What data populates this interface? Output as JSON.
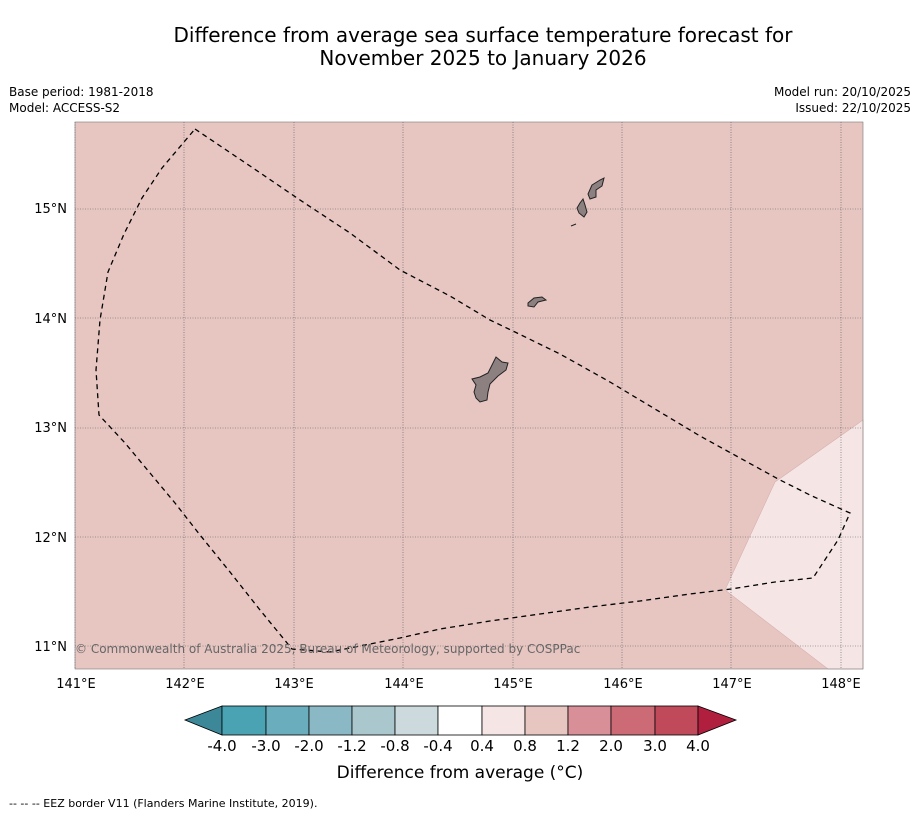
{
  "title": {
    "line1": "Difference from average sea surface temperature forecast for",
    "line2": "November 2025 to January 2026"
  },
  "meta": {
    "base_period": "Base period: 1981-2018",
    "model": "Model: ACCESS-S2",
    "model_run": "Model run: 20/10/2025",
    "issued": "Issued: 22/10/2025"
  },
  "map": {
    "lon_ticks": [
      "141°E",
      "142°E",
      "143°E",
      "144°E",
      "145°E",
      "146°E",
      "147°E",
      "148°E"
    ],
    "lat_ticks": [
      "15°N",
      "14°N",
      "13°N",
      "12°N",
      "11°N"
    ],
    "copyright": "© Commonwealth of Australia 2025, Bureau of Meteorology, supported by COSPPac",
    "zone_colors": {
      "main": "#e7c6c2",
      "southeast": "#f5e6e5",
      "land": "#8c8080"
    },
    "anomaly_zones": [
      {
        "range": "0.8 to 1.2",
        "color": "#e7c6c2",
        "area": "most of region"
      },
      {
        "range": "0.4 to 0.8",
        "color": "#f5e6e5",
        "area": "south-east corner"
      }
    ]
  },
  "colorbar": {
    "title": "Difference from average (°C)",
    "tick_labels": [
      "-4.0",
      "-3.0",
      "-2.0",
      "-1.2",
      "-0.8",
      "-0.4",
      "0.4",
      "0.8",
      "1.2",
      "2.0",
      "3.0",
      "4.0"
    ],
    "colors": [
      "#4aa3b3",
      "#6aaebe",
      "#8ab8c4",
      "#a9c7cc",
      "#cddadd",
      "#ffffff",
      "#f5e6e5",
      "#e7c6c2",
      "#d88f98",
      "#cc6a75",
      "#c04a5a"
    ],
    "under_color": "#3c8898",
    "over_color": "#b11f3e"
  },
  "footnote": "--  --  -- EEZ border V11 (Flanders Marine Institute, 2019)."
}
